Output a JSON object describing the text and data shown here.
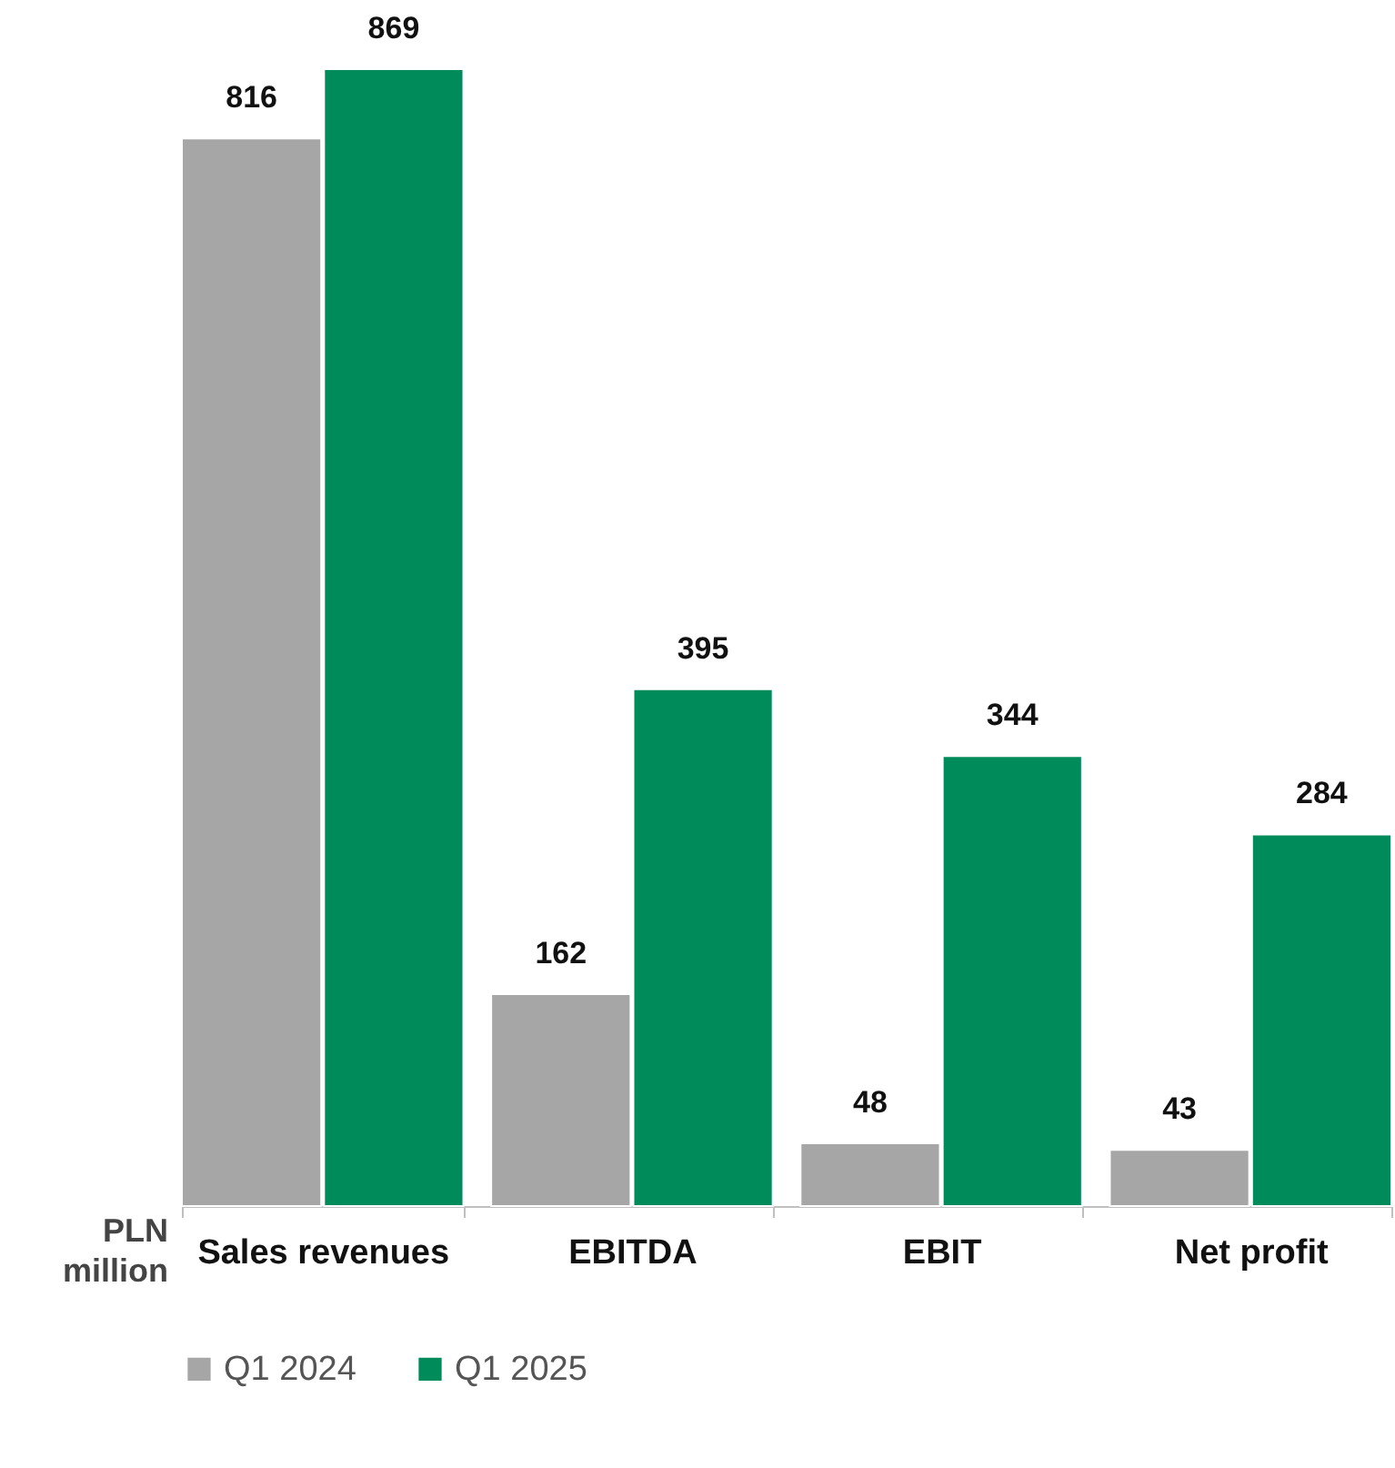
{
  "chart_data": {
    "type": "bar",
    "ylabel": "PLN million",
    "categories": [
      "Sales revenues",
      "EBITDA",
      "EBIT",
      "Net profit"
    ],
    "series": [
      {
        "name": "Q1 2024",
        "color": "#a6a6a6",
        "values": [
          816,
          162,
          48,
          43
        ]
      },
      {
        "name": "Q1 2025",
        "color": "#008c5a",
        "values": [
          869,
          395,
          344,
          284
        ]
      }
    ],
    "data_labels": true,
    "legend": "bottom",
    "grid": false
  }
}
